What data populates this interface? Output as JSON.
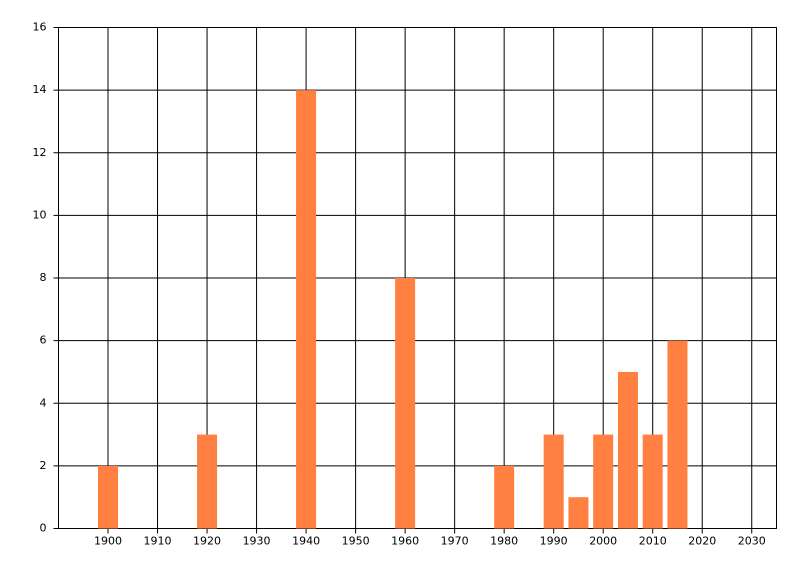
{
  "chart_data": {
    "type": "bar",
    "x": [
      1900,
      1920,
      1940,
      1960,
      1980,
      1990,
      1995,
      2000,
      2005,
      2010,
      2015
    ],
    "values": [
      2,
      3,
      14,
      8,
      2,
      3,
      1,
      3,
      5,
      3,
      6
    ],
    "color": "#ff8040",
    "xlim": [
      1890,
      2035
    ],
    "xticks": [
      1900,
      1910,
      1920,
      1930,
      1940,
      1950,
      1960,
      1970,
      1980,
      1990,
      2000,
      2010,
      2020,
      2030
    ],
    "ylim": [
      0,
      16
    ],
    "yticks": [
      0,
      2,
      4,
      6,
      8,
      10,
      12,
      14,
      16
    ],
    "grid": true
  }
}
